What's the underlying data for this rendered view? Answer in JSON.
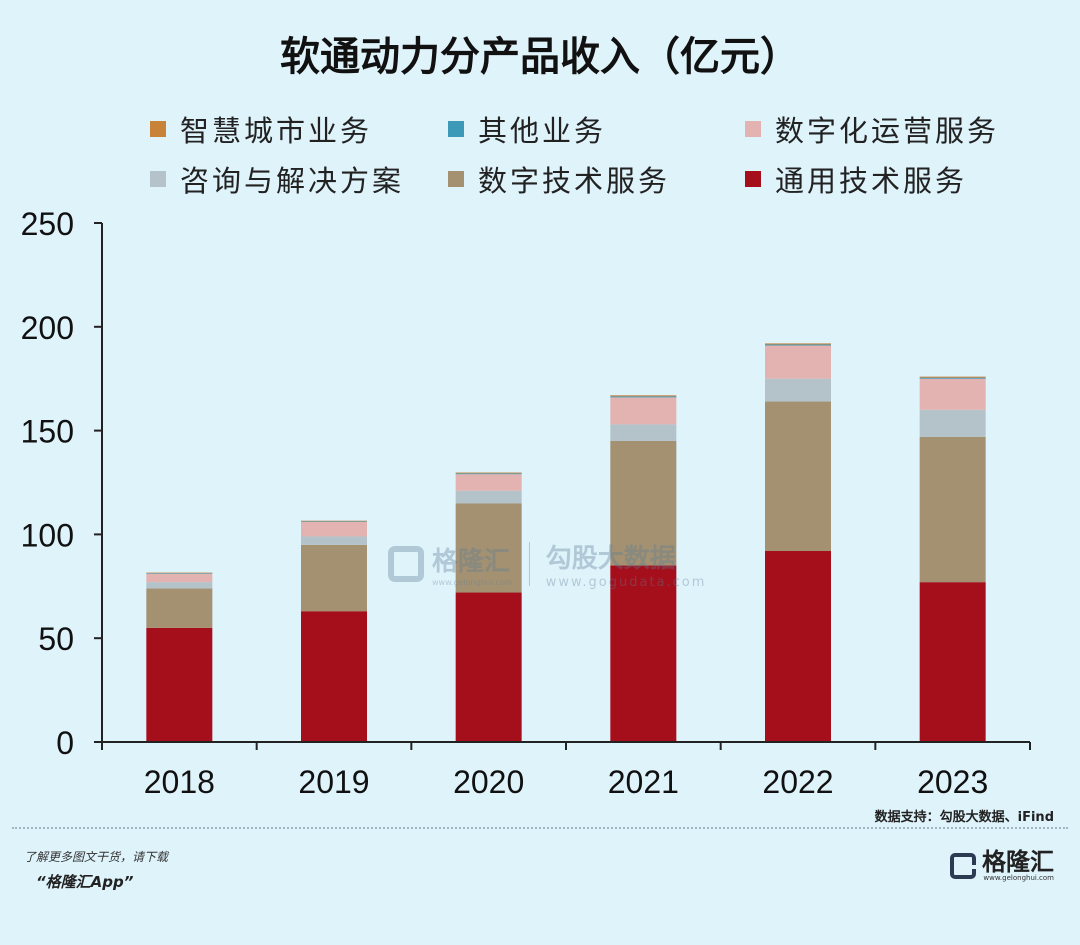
{
  "chart_data": {
    "type": "bar",
    "stacked": true,
    "title": "软通动力分产品收入（亿元）",
    "xlabel": "",
    "ylabel": "",
    "ylim": [
      0,
      250
    ],
    "yticks": [
      0,
      50,
      100,
      150,
      200,
      250
    ],
    "categories": [
      "2018",
      "2019",
      "2020",
      "2021",
      "2022",
      "2023"
    ],
    "series": [
      {
        "name": "通用技术服务",
        "color": "#a50f1c",
        "values": [
          55,
          63,
          72,
          85,
          92,
          77
        ]
      },
      {
        "name": "数字技术服务",
        "color": "#a39172",
        "values": [
          19,
          32,
          43,
          60,
          72,
          70
        ]
      },
      {
        "name": "咨询与解决方案",
        "color": "#b4c3c9",
        "values": [
          3,
          4,
          6,
          8,
          11,
          13
        ]
      },
      {
        "name": "数字化运营服务",
        "color": "#e2b3b0",
        "values": [
          4,
          7,
          8,
          13,
          16,
          15
        ]
      },
      {
        "name": "其他业务",
        "color": "#3c9ab8",
        "values": [
          0.3,
          0.3,
          0.4,
          0.5,
          0.5,
          0.5
        ]
      },
      {
        "name": "智慧城市业务",
        "color": "#c9823a",
        "values": [
          0.3,
          0.3,
          0.4,
          0.5,
          0.5,
          0.5
        ]
      }
    ],
    "legend_order": [
      "智慧城市业务",
      "其他业务",
      "数字化运营服务",
      "咨询与解决方案",
      "数字技术服务",
      "通用技术服务"
    ],
    "legend_position": "top"
  },
  "source": "数据支持：勾股大数据、iFind",
  "footer": {
    "note": "了解更多图文干货，请下载",
    "app": "“格隆汇App”",
    "brand": "格隆汇",
    "url": "www.gelonghui.com"
  },
  "watermark": {
    "brand": "格隆汇",
    "url1": "www.gelonghui.com",
    "title": "勾股大数据",
    "url2": "www.gogudata.com"
  }
}
